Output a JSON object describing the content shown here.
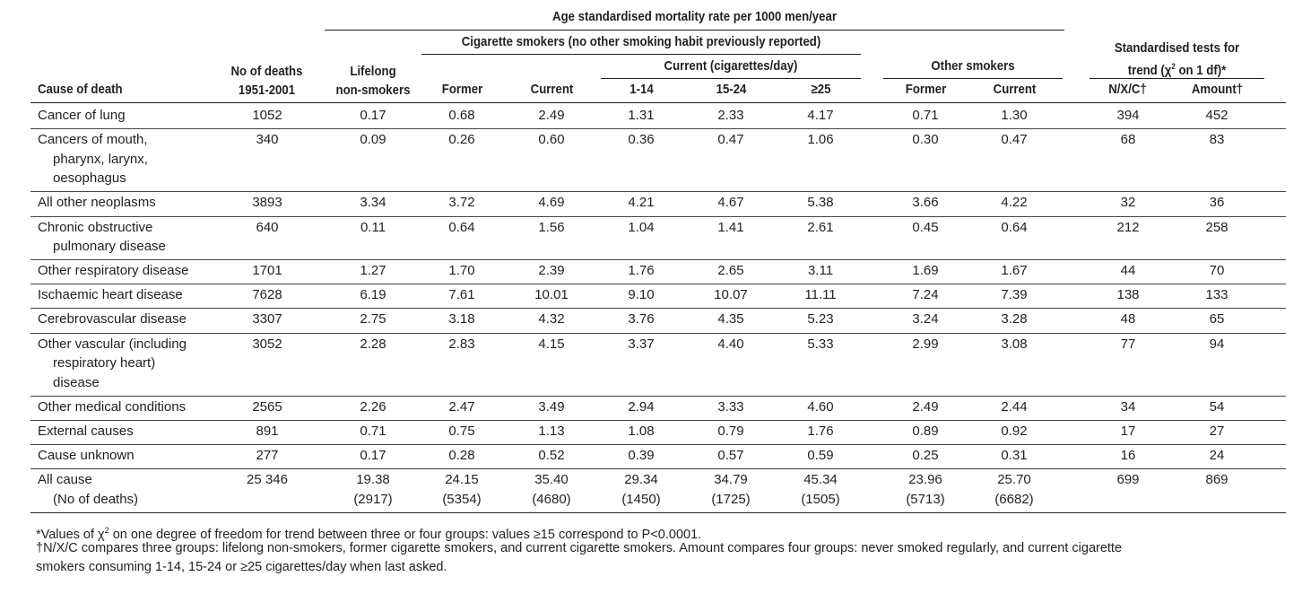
{
  "header": {
    "group_title": "Age standardised mortality rate per 1000 men/year",
    "cig_title": "Cigarette smokers (no other smoking habit previously reported)",
    "current_title": "Current  (cigarettes/day)",
    "other_title": "Other smokers",
    "trend_title_1": "Standardised tests for",
    "trend_title_2a": "trend (χ",
    "trend_title_sup": "2",
    "trend_title_2b": " on 1 df)*",
    "cause": "Cause of death",
    "deaths_1": "No of deaths",
    "deaths_2": "1951-2001",
    "nonsmoker_1": "Lifelong",
    "nonsmoker_2": "non-smokers",
    "former": "Former",
    "current": "Current",
    "c1": "1-14",
    "c2": "15-24",
    "c3": "≥25",
    "other_former": "Former",
    "other_current": "Current",
    "nxc": "N/X/C†",
    "amount": "Amount†"
  },
  "rows": [
    {
      "cause": [
        "Cancer of lung"
      ],
      "deaths": "1052",
      "vals": [
        "0.17",
        "0.68",
        "2.49",
        "1.31",
        "2.33",
        "4.17",
        "0.71",
        "1.30",
        "394",
        "452"
      ]
    },
    {
      "cause": [
        "Cancers of mouth,",
        "pharynx, larynx,",
        "oesophagus"
      ],
      "deaths": "340",
      "vals": [
        "0.09",
        "0.26",
        "0.60",
        "0.36",
        "0.47",
        "1.06",
        "0.30",
        "0.47",
        "68",
        "83"
      ]
    },
    {
      "cause": [
        "All other neoplasms"
      ],
      "deaths": "3893",
      "vals": [
        "3.34",
        "3.72",
        "4.69",
        "4.21",
        "4.67",
        "5.38",
        "3.66",
        "4.22",
        "32",
        "36"
      ]
    },
    {
      "cause": [
        "Chronic obstructive",
        "pulmonary disease"
      ],
      "deaths": "640",
      "vals": [
        "0.11",
        "0.64",
        "1.56",
        "1.04",
        "1.41",
        "2.61",
        "0.45",
        "0.64",
        "212",
        "258"
      ]
    },
    {
      "cause": [
        "Other respiratory disease"
      ],
      "deaths": "1701",
      "vals": [
        "1.27",
        "1.70",
        "2.39",
        "1.76",
        "2.65",
        "3.11",
        "1.69",
        "1.67",
        "44",
        "70"
      ]
    },
    {
      "cause": [
        "Ischaemic heart disease"
      ],
      "deaths": "7628",
      "vals": [
        "6.19",
        "7.61",
        "10.01",
        "9.10",
        "10.07",
        "11.11",
        "7.24",
        "7.39",
        "138",
        "133"
      ]
    },
    {
      "cause": [
        "Cerebrovascular disease"
      ],
      "deaths": "3307",
      "vals": [
        "2.75",
        "3.18",
        "4.32",
        "3.76",
        "4.35",
        "5.23",
        "3.24",
        "3.28",
        "48",
        "65"
      ]
    },
    {
      "cause": [
        "Other vascular (including",
        "respiratory heart)",
        "disease"
      ],
      "deaths": "3052",
      "vals": [
        "2.28",
        "2.83",
        "4.15",
        "3.37",
        "4.40",
        "5.33",
        "2.99",
        "3.08",
        "77",
        "94"
      ]
    },
    {
      "cause": [
        "Other medical conditions"
      ],
      "deaths": "2565",
      "vals": [
        "2.26",
        "2.47",
        "3.49",
        "2.94",
        "3.33",
        "4.60",
        "2.49",
        "2.44",
        "34",
        "54"
      ]
    },
    {
      "cause": [
        "External causes"
      ],
      "deaths": "891",
      "vals": [
        "0.71",
        "0.75",
        "1.13",
        "1.08",
        "0.79",
        "1.76",
        "0.89",
        "0.92",
        "17",
        "27"
      ]
    },
    {
      "cause": [
        "Cause unknown"
      ],
      "deaths": "277",
      "vals": [
        "0.17",
        "0.28",
        "0.52",
        "0.39",
        "0.57",
        "0.59",
        "0.25",
        "0.31",
        "16",
        "24"
      ]
    }
  ],
  "all_cause": {
    "cause": [
      "All cause",
      "(No of deaths)"
    ],
    "deaths": "25 346",
    "vals": [
      "19.38",
      "24.15",
      "35.40",
      "29.34",
      "34.79",
      "45.34",
      "23.96",
      "25.70",
      "699",
      "869"
    ],
    "counts": [
      "(2917)",
      "(5354)",
      "(4680)",
      "(1450)",
      "(1725)",
      "(1505)",
      "(5713)",
      "(6682)"
    ]
  },
  "footnotes": {
    "fn1a": "*Values of χ",
    "fn1_sup": "2",
    "fn1b": " on one degree of freedom for trend between three or four groups: values ≥15 correspond to P<0.0001.",
    "fn2_line1": "†N/X/C compares three groups: lifelong non-smokers, former cigarette smokers, and current cigarette smokers. Amount compares four groups: never smoked regularly, and current cigarette",
    "fn2_line2": "smokers consuming 1-14, 15-24 or ≥25 cigarettes/day when last asked."
  }
}
